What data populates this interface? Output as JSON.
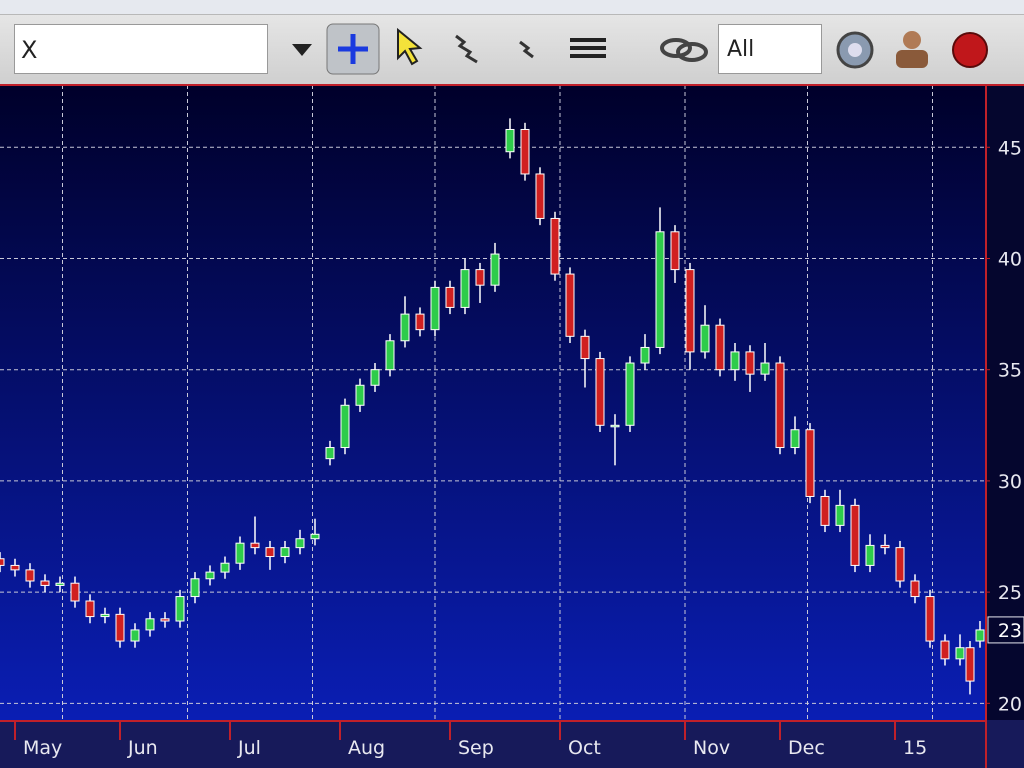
{
  "toolbar": {
    "symbol": "X",
    "filter": "All"
  },
  "chart_data": {
    "type": "candlestick",
    "up_color": "#2ecc4a",
    "down_color": "#d02020",
    "wick_color": "#ffffff",
    "grid": true,
    "xlim": [
      0,
      197
    ],
    "ylim": [
      19.25,
      47.8
    ],
    "yticks": [
      20,
      25,
      30,
      35,
      40,
      45
    ],
    "xticks": [
      {
        "value": 3,
        "label": "May"
      },
      {
        "value": 24,
        "label": "Jun"
      },
      {
        "value": 46,
        "label": "Jul"
      },
      {
        "value": 68,
        "label": "Aug"
      },
      {
        "value": 90,
        "label": "Sep"
      },
      {
        "value": 112,
        "label": "Oct"
      },
      {
        "value": 137,
        "label": "Nov"
      },
      {
        "value": 156,
        "label": "Dec"
      },
      {
        "value": 179,
        "label": "15"
      }
    ],
    "xgrid": [
      12.5,
      37.5,
      62.5,
      87,
      112,
      137,
      161.5,
      186.5
    ],
    "last_price": {
      "value": 23.3,
      "label": "23"
    },
    "x": [
      0,
      3,
      6,
      9,
      12,
      15,
      18,
      21,
      24,
      27,
      30,
      33,
      36,
      39,
      42,
      45,
      48,
      51,
      54,
      57,
      60,
      63,
      66,
      69,
      72,
      75,
      78,
      81,
      84,
      87,
      90,
      93,
      96,
      99,
      102,
      105,
      108,
      111,
      114,
      117,
      120,
      123,
      126,
      129,
      132,
      135,
      138,
      141,
      144,
      147,
      150,
      153,
      156,
      159,
      162,
      165,
      168,
      171,
      174,
      177,
      180,
      183,
      186,
      189,
      192,
      194,
      196
    ],
    "open": [
      26.5,
      26.2,
      26.0,
      25.5,
      25.3,
      25.4,
      24.6,
      23.9,
      24.0,
      22.8,
      23.3,
      23.8,
      23.7,
      24.8,
      25.6,
      25.9,
      26.3,
      27.2,
      27.0,
      26.6,
      27.0,
      27.4,
      31.0,
      31.5,
      33.4,
      34.3,
      35.0,
      36.3,
      37.5,
      36.8,
      38.7,
      37.8,
      39.5,
      38.8,
      44.8,
      45.8,
      43.8,
      41.8,
      39.3,
      36.5,
      35.5,
      32.5,
      32.5,
      35.3,
      36.0,
      41.2,
      39.5,
      35.8,
      37.0,
      35.0,
      35.8,
      34.8,
      35.3,
      31.5,
      32.3,
      29.3,
      28.0,
      28.9,
      26.2,
      27.1,
      27.0,
      25.5,
      24.8,
      22.8,
      22.0,
      22.5,
      22.8
    ],
    "high": [
      26.8,
      26.5,
      26.3,
      25.8,
      25.7,
      25.7,
      24.9,
      24.3,
      24.3,
      23.6,
      24.1,
      24.1,
      25.1,
      25.9,
      26.2,
      26.6,
      27.5,
      28.4,
      27.3,
      27.3,
      27.8,
      28.3,
      31.8,
      33.7,
      34.6,
      35.3,
      36.6,
      38.3,
      37.8,
      39.0,
      39.0,
      40.0,
      39.8,
      40.7,
      46.3,
      46.1,
      44.1,
      42.1,
      39.6,
      36.8,
      35.8,
      33.0,
      35.6,
      36.6,
      42.3,
      41.5,
      39.8,
      37.9,
      37.3,
      36.2,
      36.1,
      36.2,
      35.6,
      32.9,
      32.6,
      29.6,
      29.6,
      29.2,
      27.6,
      27.6,
      27.3,
      25.8,
      25.1,
      23.1,
      23.1,
      22.8,
      23.7
    ],
    "low": [
      25.9,
      25.7,
      25.2,
      25.0,
      25.0,
      24.3,
      23.6,
      23.6,
      22.5,
      22.5,
      23.0,
      23.4,
      23.4,
      24.5,
      25.3,
      25.6,
      26.0,
      26.7,
      26.0,
      26.3,
      26.7,
      27.1,
      30.7,
      31.2,
      33.1,
      34.0,
      34.7,
      36.0,
      36.5,
      36.5,
      37.5,
      37.5,
      38.0,
      38.5,
      44.5,
      43.5,
      41.5,
      39.0,
      36.2,
      34.2,
      32.2,
      30.7,
      32.2,
      35.0,
      35.7,
      38.9,
      35.0,
      35.5,
      34.7,
      34.5,
      34.0,
      34.5,
      31.2,
      31.2,
      29.0,
      27.7,
      27.7,
      25.9,
      25.9,
      26.7,
      25.2,
      24.5,
      22.5,
      21.7,
      21.7,
      20.4,
      22.5
    ],
    "close": [
      26.2,
      26.0,
      25.5,
      25.3,
      25.4,
      24.6,
      23.9,
      24.0,
      22.8,
      23.3,
      23.8,
      23.7,
      24.8,
      25.6,
      25.9,
      26.3,
      27.2,
      27.0,
      26.6,
      27.0,
      27.4,
      27.6,
      31.5,
      33.4,
      34.3,
      35.0,
      36.3,
      37.5,
      36.8,
      38.7,
      37.8,
      39.5,
      38.8,
      40.2,
      45.8,
      43.8,
      41.8,
      39.3,
      36.5,
      35.5,
      32.5,
      32.5,
      35.3,
      36.0,
      41.2,
      39.5,
      35.8,
      37.0,
      35.0,
      35.8,
      34.8,
      35.3,
      31.5,
      32.3,
      29.3,
      28.0,
      28.9,
      26.2,
      27.1,
      27.0,
      25.5,
      24.8,
      22.8,
      22.0,
      22.5,
      21.0,
      23.3
    ]
  }
}
